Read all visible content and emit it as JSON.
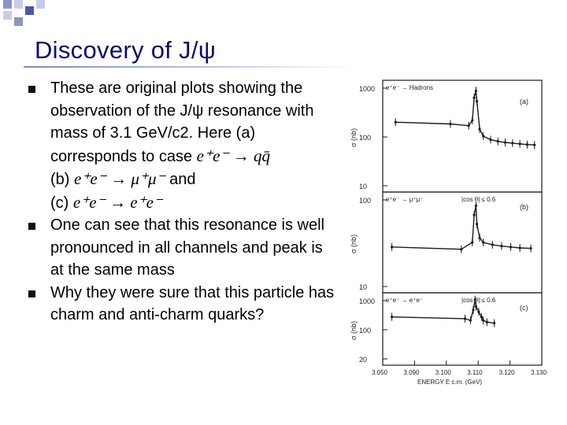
{
  "slide": {
    "title": "Discovery of J/ψ",
    "decor_colors": [
      "#8b95c9",
      "#c7cde8",
      "#4c58a6"
    ]
  },
  "bullets": [
    {
      "line1": "These are original plots showing the observation of the J/ψ resonance with mass of 3.1 GeV/c2. Here (a) corresponds to case",
      "math_a": "e⁺e⁻ → qq̄",
      "prefix_b": "(b)",
      "math_b": "e⁺e⁻ → μ⁺μ⁻",
      "and_word": "and",
      "prefix_c": "(c)",
      "math_c": "e⁺e⁻ → e⁺e⁻"
    },
    {
      "text": "One can see that this resonance is well pronounced in all channels and peak is at the same mass"
    },
    {
      "text": "Why they were sure that this particle has charm and anti-charm quarks?"
    }
  ],
  "figure": {
    "panels": [
      {
        "id": "a",
        "tag": "(a)",
        "ylabel": "σ (nb)",
        "channel": "e⁺e⁻ → Hadrons",
        "y_ticks": [
          "1000",
          "100",
          "10"
        ]
      },
      {
        "id": "b",
        "tag": "(b)",
        "ylabel": "σ (nb)",
        "channel": "e⁺e⁻ → μ⁺μ⁻",
        "cut": "|cos θ| ≤ 0.6",
        "y_ticks": [
          "100",
          "10"
        ]
      },
      {
        "id": "c",
        "tag": "(c)",
        "ylabel": "σ (nb)",
        "channel": "e⁺e⁻ → e⁺e⁻",
        "cut": "|cos θ| ≤ 0.6",
        "y_ticks": [
          "1000",
          "100",
          "20"
        ]
      }
    ],
    "x_ticks": [
      "3.050",
      "3.090",
      "3.100",
      "3.110",
      "3.120",
      "3.130"
    ],
    "xlabel": "ENERGY E c.m. (GeV)",
    "line_color": "#1a1a1a",
    "points": {
      "a": [
        [
          3.052,
          3.0
        ],
        [
          3.082,
          2.95
        ],
        [
          3.092,
          2.9
        ],
        [
          3.094,
          3.05
        ],
        [
          3.095,
          3.7
        ],
        [
          3.096,
          3.9
        ],
        [
          3.0965,
          3.6
        ],
        [
          3.098,
          2.8
        ],
        [
          3.1,
          2.6
        ],
        [
          3.104,
          2.5
        ],
        [
          3.108,
          2.45
        ],
        [
          3.112,
          2.42
        ],
        [
          3.116,
          2.4
        ],
        [
          3.12,
          2.38
        ],
        [
          3.124,
          2.36
        ],
        [
          3.128,
          2.35
        ]
      ],
      "b": [
        [
          3.05,
          2.0
        ],
        [
          3.088,
          1.95
        ],
        [
          3.094,
          2.1
        ],
        [
          3.095,
          2.7
        ],
        [
          3.096,
          2.9
        ],
        [
          3.0965,
          2.5
        ],
        [
          3.098,
          2.2
        ],
        [
          3.1,
          2.1
        ],
        [
          3.105,
          2.05
        ],
        [
          3.11,
          2.02
        ],
        [
          3.115,
          2.0
        ],
        [
          3.12,
          1.98
        ],
        [
          3.126,
          1.97
        ]
      ],
      "c": [
        [
          3.05,
          2.6
        ],
        [
          3.09,
          2.55
        ],
        [
          3.093,
          2.5
        ],
        [
          3.0945,
          2.8
        ],
        [
          3.0955,
          3.1
        ],
        [
          3.096,
          2.9
        ],
        [
          3.0975,
          2.75
        ],
        [
          3.099,
          2.6
        ],
        [
          3.1,
          2.5
        ],
        [
          3.102,
          2.45
        ],
        [
          3.106,
          2.42
        ]
      ]
    }
  }
}
